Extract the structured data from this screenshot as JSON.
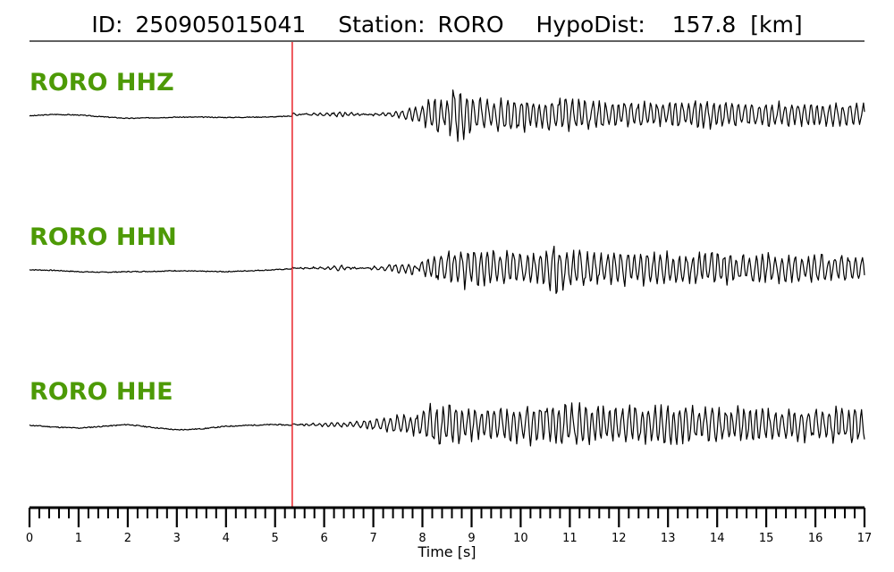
{
  "header": {
    "id_label": "ID:",
    "id_value": "250905015041",
    "station_label": "Station:",
    "station_value": "RORO",
    "dist_label": "HypoDist:",
    "dist_value": "157.8",
    "dist_unit": "[km]"
  },
  "colors": {
    "trace": "#000000",
    "pick": "#e8141b",
    "channel_label": "#4d9a06"
  },
  "chart_data": {
    "type": "line",
    "xlabel": "Time [s]",
    "xlim": [
      0,
      17
    ],
    "major_ticks": [
      0,
      1,
      2,
      3,
      4,
      5,
      6,
      7,
      8,
      9,
      10,
      11,
      12,
      13,
      14,
      15,
      16,
      17
    ],
    "minor_tick_step": 0.2,
    "pick_time": 5.35,
    "series": [
      {
        "name": "RORO HHZ",
        "points": [
          [
            0,
            -0.05
          ],
          [
            0.5,
            0.0
          ],
          [
            1.0,
            -0.02
          ],
          [
            1.5,
            -0.08
          ],
          [
            2.0,
            -0.13
          ],
          [
            2.5,
            -0.11
          ],
          [
            3.0,
            -0.09
          ],
          [
            3.5,
            -0.09
          ],
          [
            4.0,
            -0.1
          ],
          [
            4.5,
            -0.09
          ],
          [
            5.0,
            -0.08
          ],
          [
            5.35,
            -0.05
          ],
          [
            5.6,
            0.02
          ],
          [
            6.0,
            0.06
          ],
          [
            6.3,
            0.08
          ],
          [
            6.6,
            0.05
          ],
          [
            6.9,
            0.02
          ],
          [
            7.2,
            0.05
          ],
          [
            7.5,
            0.1
          ],
          [
            7.8,
            0.25
          ],
          [
            8.0,
            0.3
          ],
          [
            8.2,
            0.6
          ],
          [
            8.3,
            1.0
          ],
          [
            8.4,
            0.3
          ],
          [
            8.6,
            0.8
          ],
          [
            8.8,
            0.8
          ],
          [
            9.0,
            0.6
          ],
          [
            9.3,
            0.45
          ],
          [
            9.6,
            0.55
          ],
          [
            10.0,
            0.55
          ],
          [
            10.4,
            0.45
          ],
          [
            10.8,
            0.6
          ],
          [
            11.0,
            0.5
          ],
          [
            11.2,
            0.45
          ],
          [
            11.6,
            0.45
          ],
          [
            12.0,
            0.45
          ],
          [
            12.4,
            0.4
          ],
          [
            12.8,
            0.4
          ],
          [
            13.2,
            0.45
          ],
          [
            13.6,
            0.45
          ],
          [
            14.0,
            0.4
          ],
          [
            14.4,
            0.4
          ],
          [
            14.8,
            0.4
          ],
          [
            15.2,
            0.4
          ],
          [
            15.6,
            0.4
          ],
          [
            16.0,
            0.4
          ],
          [
            16.4,
            0.35
          ],
          [
            16.8,
            0.4
          ],
          [
            17.0,
            0.35
          ]
        ]
      },
      {
        "name": "RORO HHN",
        "points": [
          [
            0,
            -0.05
          ],
          [
            0.5,
            -0.07
          ],
          [
            1.0,
            -0.11
          ],
          [
            1.5,
            -0.13
          ],
          [
            2.0,
            -0.11
          ],
          [
            2.5,
            -0.1
          ],
          [
            3.0,
            -0.08
          ],
          [
            3.5,
            -0.1
          ],
          [
            4.0,
            -0.11
          ],
          [
            4.5,
            -0.08
          ],
          [
            5.0,
            -0.05
          ],
          [
            5.35,
            -0.02
          ],
          [
            5.6,
            0.02
          ],
          [
            6.0,
            0.04
          ],
          [
            6.3,
            0.08
          ],
          [
            6.6,
            0.03
          ],
          [
            7.0,
            -0.05
          ],
          [
            7.4,
            -0.12
          ],
          [
            7.8,
            -0.18
          ],
          [
            8.0,
            0.25
          ],
          [
            8.3,
            0.45
          ],
          [
            8.6,
            0.5
          ],
          [
            8.8,
            0.65
          ],
          [
            9.0,
            0.55
          ],
          [
            9.3,
            0.5
          ],
          [
            9.6,
            0.5
          ],
          [
            10.0,
            0.5
          ],
          [
            10.4,
            0.5
          ],
          [
            10.7,
            0.8
          ],
          [
            11.0,
            0.6
          ],
          [
            11.2,
            0.55
          ],
          [
            11.6,
            0.5
          ],
          [
            12.0,
            0.55
          ],
          [
            12.4,
            0.5
          ],
          [
            12.8,
            0.5
          ],
          [
            13.2,
            0.5
          ],
          [
            13.6,
            0.45
          ],
          [
            14.0,
            0.5
          ],
          [
            14.4,
            0.45
          ],
          [
            14.8,
            0.45
          ],
          [
            15.2,
            0.45
          ],
          [
            15.6,
            0.4
          ],
          [
            16.0,
            0.4
          ],
          [
            16.4,
            0.4
          ],
          [
            16.8,
            0.4
          ],
          [
            17.0,
            0.4
          ]
        ]
      },
      {
        "name": "RORO HHE",
        "points": [
          [
            0,
            -0.02
          ],
          [
            0.5,
            -0.07
          ],
          [
            1.0,
            -0.1
          ],
          [
            1.5,
            -0.05
          ],
          [
            2.0,
            0.0
          ],
          [
            2.5,
            -0.08
          ],
          [
            3.0,
            -0.15
          ],
          [
            3.5,
            -0.12
          ],
          [
            4.0,
            -0.05
          ],
          [
            4.5,
            -0.02
          ],
          [
            5.0,
            0.0
          ],
          [
            5.35,
            -0.02
          ],
          [
            5.6,
            0.02
          ],
          [
            6.0,
            0.05
          ],
          [
            6.5,
            0.08
          ],
          [
            7.0,
            0.15
          ],
          [
            7.5,
            0.25
          ],
          [
            7.8,
            0.3
          ],
          [
            8.0,
            0.4
          ],
          [
            8.2,
            0.6
          ],
          [
            8.4,
            0.5
          ],
          [
            8.6,
            0.55
          ],
          [
            8.8,
            0.5
          ],
          [
            9.0,
            0.5
          ],
          [
            9.3,
            0.45
          ],
          [
            9.6,
            0.55
          ],
          [
            10.0,
            0.5
          ],
          [
            10.4,
            0.55
          ],
          [
            10.8,
            0.6
          ],
          [
            11.0,
            0.55
          ],
          [
            11.4,
            0.55
          ],
          [
            11.8,
            0.5
          ],
          [
            12.2,
            0.55
          ],
          [
            12.6,
            0.5
          ],
          [
            13.0,
            0.55
          ],
          [
            13.4,
            0.5
          ],
          [
            13.8,
            0.5
          ],
          [
            14.2,
            0.45
          ],
          [
            14.6,
            0.5
          ],
          [
            15.0,
            0.45
          ],
          [
            15.4,
            0.45
          ],
          [
            15.8,
            0.45
          ],
          [
            16.2,
            0.45
          ],
          [
            16.6,
            0.5
          ],
          [
            17.0,
            0.45
          ]
        ]
      }
    ]
  }
}
